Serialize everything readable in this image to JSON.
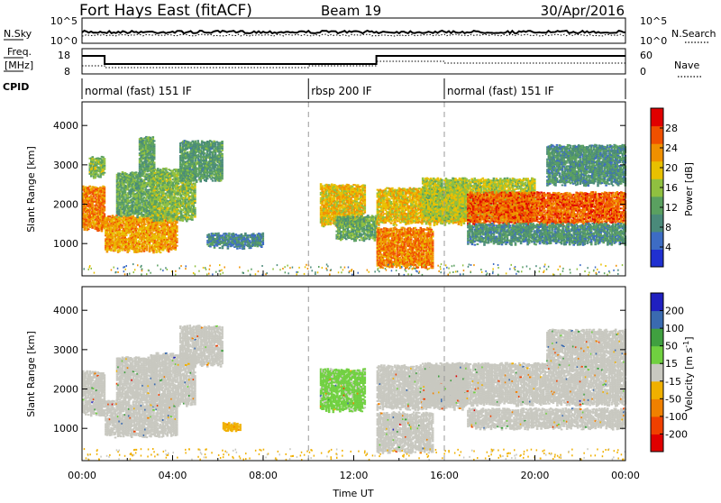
{
  "header": {
    "title": "Fort Hays East (fitACF)",
    "beam": "Beam 19",
    "date": "30/Apr/2016"
  },
  "noise_panel": {
    "left_label": "N.Sky",
    "right_label": "N.Search",
    "left_ticks": [
      "10^5",
      "10^0"
    ],
    "right_ticks": [
      "10^5",
      "10^0"
    ]
  },
  "freq_panel": {
    "left_label_1": "Freq.",
    "left_label_2": "[MHz]",
    "right_label": "Nave",
    "left_ticks": [
      "18",
      "8"
    ],
    "right_ticks": [
      "60",
      "0"
    ]
  },
  "cpid": {
    "label": "CPID",
    "segments": [
      {
        "start": 0,
        "end": 10,
        "text": "normal (fast) 151 IF"
      },
      {
        "start": 10,
        "end": 16,
        "text": "rbsp 200 IF"
      },
      {
        "start": 16,
        "end": 24,
        "text": "normal (fast) 151 IF"
      }
    ]
  },
  "colors": {
    "power": [
      "#2030d0",
      "#3d6cc4",
      "#4a8a7a",
      "#5aa060",
      "#90c040",
      "#e8c000",
      "#f09000",
      "#f05000",
      "#e00000"
    ],
    "velocity": [
      "#e00000",
      "#f04000",
      "#f08000",
      "#f0b000",
      "#c8c8c0",
      "#70d040",
      "#40a040",
      "#3a6ab0",
      "#2020c0"
    ],
    "grey": "#c8c8c0"
  },
  "chart_data": [
    {
      "type": "heatmap",
      "name": "power",
      "ylabel": "Slant Range [km]",
      "xlim": [
        0,
        24
      ],
      "ylim": [
        180,
        4600
      ],
      "yticks": [
        1000,
        2000,
        3000,
        4000
      ],
      "colorbar": {
        "label": "Power [dB]",
        "ticks": [
          "4",
          "8",
          "12",
          "16",
          "20",
          "24",
          "28"
        ],
        "range": [
          0,
          32
        ]
      },
      "bands": [
        {
          "t0": 0.0,
          "t1": 1.0,
          "lo": 1350,
          "hi": 2450,
          "v": 24
        },
        {
          "t0": 0.3,
          "t1": 1.0,
          "lo": 2700,
          "hi": 3200,
          "v": 15
        },
        {
          "t0": 1.0,
          "t1": 4.2,
          "lo": 800,
          "hi": 1700,
          "v": 22
        },
        {
          "t0": 1.5,
          "t1": 3.3,
          "lo": 1700,
          "hi": 2800,
          "v": 13
        },
        {
          "t0": 2.5,
          "t1": 3.2,
          "lo": 2800,
          "hi": 3700,
          "v": 12
        },
        {
          "t0": 3.0,
          "t1": 5.0,
          "lo": 1600,
          "hi": 2900,
          "v": 15
        },
        {
          "t0": 4.3,
          "t1": 6.2,
          "lo": 2600,
          "hi": 3600,
          "v": 11
        },
        {
          "t0": 5.5,
          "t1": 8.0,
          "lo": 900,
          "hi": 1250,
          "v": 8
        },
        {
          "t0": 10.5,
          "t1": 12.5,
          "lo": 1450,
          "hi": 2500,
          "v": 20
        },
        {
          "t0": 11.2,
          "t1": 13.0,
          "lo": 1100,
          "hi": 1700,
          "v": 13
        },
        {
          "t0": 13.0,
          "t1": 15.5,
          "lo": 400,
          "hi": 1400,
          "v": 24
        },
        {
          "t0": 13.0,
          "t1": 17.0,
          "lo": 1500,
          "hi": 2400,
          "v": 20
        },
        {
          "t0": 15.0,
          "t1": 20.0,
          "lo": 1600,
          "hi": 2650,
          "v": 17
        },
        {
          "t0": 17.0,
          "t1": 24.0,
          "lo": 1500,
          "hi": 2300,
          "v": 26
        },
        {
          "t0": 17.0,
          "t1": 24.0,
          "lo": 1000,
          "hi": 1500,
          "v": 10
        },
        {
          "t0": 20.5,
          "t1": 24.0,
          "lo": 2500,
          "hi": 3500,
          "v": 10
        }
      ]
    },
    {
      "type": "heatmap",
      "name": "velocity",
      "ylabel": "Slant Range [km]",
      "xlabel": "Time UT",
      "xlim": [
        0,
        24
      ],
      "ylim": [
        180,
        4600
      ],
      "yticks": [
        1000,
        2000,
        3000,
        4000
      ],
      "xticks": [
        "00:00",
        "04:00",
        "08:00",
        "12:00",
        "16:00",
        "20:00",
        "00:00"
      ],
      "colorbar": {
        "label": "Velocity [m s^-1]",
        "ticks": [
          "200",
          "100",
          "50",
          "15",
          "-15",
          "-50",
          "-100",
          "-200"
        ],
        "range": [
          -250,
          250
        ]
      },
      "bands": [
        {
          "t0": 0.0,
          "t1": 1.0,
          "lo": 1350,
          "hi": 2450,
          "v": 0
        },
        {
          "t0": 1.0,
          "t1": 4.2,
          "lo": 800,
          "hi": 1700,
          "v": 0
        },
        {
          "t0": 1.5,
          "t1": 3.3,
          "lo": 1700,
          "hi": 2800,
          "v": 0
        },
        {
          "t0": 3.0,
          "t1": 5.0,
          "lo": 1600,
          "hi": 2900,
          "v": 0
        },
        {
          "t0": 4.3,
          "t1": 6.2,
          "lo": 2600,
          "hi": 3600,
          "v": 0
        },
        {
          "t0": 6.2,
          "t1": 7.0,
          "lo": 950,
          "hi": 1150,
          "v": -70
        },
        {
          "t0": 10.5,
          "t1": 12.5,
          "lo": 1450,
          "hi": 2500,
          "v": 40
        },
        {
          "t0": 13.0,
          "t1": 17.0,
          "lo": 1500,
          "hi": 2600,
          "v": 0
        },
        {
          "t0": 13.0,
          "t1": 15.5,
          "lo": 400,
          "hi": 1400,
          "v": 0
        },
        {
          "t0": 15.0,
          "t1": 24.0,
          "lo": 1600,
          "hi": 2650,
          "v": 0
        },
        {
          "t0": 17.0,
          "t1": 24.0,
          "lo": 1000,
          "hi": 1500,
          "v": 0
        },
        {
          "t0": 20.5,
          "t1": 24.0,
          "lo": 2600,
          "hi": 3500,
          "v": 0
        }
      ]
    }
  ]
}
